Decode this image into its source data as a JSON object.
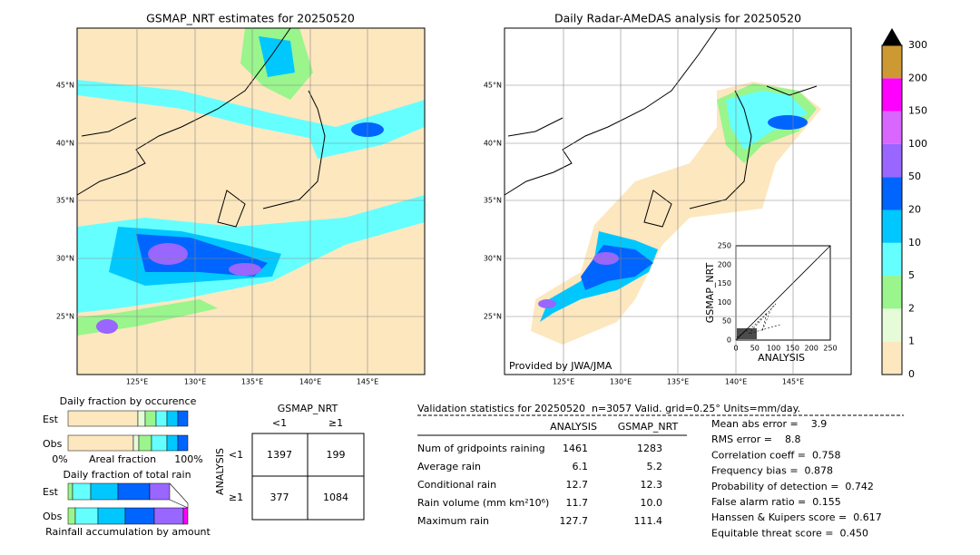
{
  "left_map": {
    "title": "GSMAP_NRT estimates for 20250520",
    "lat_labels": [
      "45°N",
      "40°N",
      "35°N",
      "30°N",
      "25°N"
    ],
    "lon_labels": [
      "125°E",
      "130°E",
      "135°E",
      "140°E",
      "145°E"
    ]
  },
  "right_map": {
    "title": "Daily Radar-AMeDAS analysis for 20250520",
    "lat_labels": [
      "45°N",
      "40°N",
      "35°N",
      "30°N",
      "25°N"
    ],
    "lon_labels": [
      "125°E",
      "130°E",
      "135°E",
      "140°E",
      "145°E"
    ],
    "credit": "Provided by JWA/JMA"
  },
  "inset": {
    "xlabel": "ANALYSIS",
    "ylabel": "GSMAP_NRT",
    "ticks": [
      "0",
      "50",
      "100",
      "150",
      "200",
      "250"
    ]
  },
  "colorbar": {
    "labels": [
      "0",
      "1",
      "2",
      "5",
      "10",
      "20",
      "50",
      "100",
      "150",
      "200",
      "300"
    ]
  },
  "fraction_occurrence": {
    "title": "Daily fraction by occurence",
    "rows": [
      "Est",
      "Obs"
    ],
    "axis": [
      "0%",
      "Areal fraction",
      "100%"
    ]
  },
  "fraction_total": {
    "title": "Daily fraction of total rain",
    "rows": [
      "Est",
      "Obs"
    ],
    "footer": "Rainfall accumulation by amount"
  },
  "contingency": {
    "title": "GSMAP_NRT",
    "columns": [
      "<1",
      "≥1"
    ],
    "row_axis": "ANALYSIS",
    "rows": [
      "<1",
      "≥1"
    ],
    "cells": [
      [
        "1397",
        "199"
      ],
      [
        "377",
        "1084"
      ]
    ]
  },
  "validation": {
    "header": "Validation statistics for 20250520  n=3057 Valid. grid=0.25° Units=mm/day.",
    "columns": [
      "ANALYSIS",
      "GSMAP_NRT"
    ],
    "rows": [
      [
        "Num of gridpoints raining",
        "1461",
        "1283"
      ],
      [
        "Average rain",
        "6.1",
        "5.2"
      ],
      [
        "Conditional rain",
        "12.7",
        "12.3"
      ],
      [
        "Rain volume (mm km²10⁶)",
        "11.7",
        "10.0"
      ],
      [
        "Maximum rain",
        "127.7",
        "111.4"
      ]
    ],
    "scores": [
      "Mean abs error =    3.9",
      "RMS error =    8.8",
      "Correlation coeff =  0.758",
      "Frequency bias =  0.878",
      "Probability of detection =  0.742",
      "False alarm ratio =  0.155",
      "Hanssen & Kuipers score =  0.617",
      "Equitable threat score =  0.450"
    ]
  }
}
